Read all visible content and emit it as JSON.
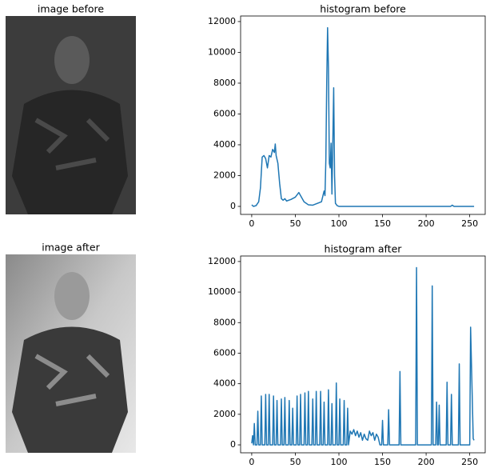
{
  "chart_data": [
    {
      "type": "image",
      "title": "image before"
    },
    {
      "type": "line",
      "title": "histogram before",
      "x": [
        0,
        2,
        5,
        8,
        10,
        12,
        14,
        16,
        18,
        20,
        22,
        24,
        26,
        27,
        28,
        30,
        32,
        34,
        36,
        38,
        40,
        45,
        50,
        54,
        56,
        60,
        65,
        70,
        80,
        83,
        84,
        85,
        86,
        87,
        88,
        89,
        90,
        91,
        92,
        93,
        94,
        95,
        96,
        98,
        100,
        150,
        200,
        228,
        230,
        232,
        255
      ],
      "series": [
        {
          "name": "histogram before",
          "color": "#1f77b4",
          "values": [
            100,
            0,
            50,
            300,
            1200,
            3200,
            3300,
            3100,
            2500,
            3300,
            3200,
            3700,
            3500,
            4050,
            3300,
            2800,
            1500,
            500,
            400,
            500,
            350,
            450,
            600,
            900,
            700,
            300,
            100,
            80,
            300,
            1000,
            700,
            3000,
            8000,
            11600,
            9000,
            2800,
            2500,
            4100,
            800,
            4200,
            7700,
            2000,
            200,
            50,
            0,
            0,
            0,
            0,
            80,
            0,
            0
          ]
        }
      ],
      "xlim": [
        -12.75,
        267.75
      ],
      "xticks": [
        0,
        50,
        100,
        150,
        200,
        250
      ],
      "ylim": [
        -520,
        12360
      ],
      "yticks": [
        0,
        2000,
        4000,
        6000,
        8000,
        10000,
        12000
      ]
    },
    {
      "type": "image",
      "title": "image after"
    },
    {
      "type": "line",
      "title": "histogram after",
      "x": [
        0,
        1,
        2,
        3,
        4,
        6,
        7,
        8,
        10,
        11,
        12,
        15,
        16,
        17,
        19,
        20,
        21,
        24,
        25,
        26,
        28,
        29,
        30,
        33,
        34,
        35,
        37,
        38,
        39,
        42,
        43,
        44,
        46,
        47,
        48,
        51,
        52,
        53,
        55,
        56,
        57,
        60,
        61,
        62,
        64,
        65,
        66,
        69,
        70,
        71,
        73,
        74,
        75,
        78,
        79,
        80,
        82,
        83,
        84,
        87,
        88,
        89,
        91,
        92,
        93,
        96,
        97,
        98,
        100,
        101,
        102,
        105,
        106,
        107,
        109,
        110,
        111,
        113,
        115,
        117,
        119,
        121,
        123,
        125,
        127,
        129,
        131,
        133,
        135,
        137,
        139,
        141,
        143,
        145,
        147,
        149,
        150,
        151,
        156,
        157,
        158,
        169,
        170,
        171,
        188,
        189,
        190,
        206,
        207,
        208,
        211,
        212,
        213,
        214,
        215,
        216,
        223,
        224,
        225,
        228,
        229,
        230,
        237,
        238,
        239,
        250,
        251,
        254,
        255
      ],
      "series": [
        {
          "name": "histogram after",
          "color": "#1f77b4",
          "values": [
            100,
            600,
            0,
            1400,
            0,
            0,
            2200,
            0,
            0,
            3200,
            0,
            0,
            3300,
            0,
            0,
            3300,
            0,
            0,
            3200,
            0,
            0,
            2900,
            0,
            0,
            3000,
            0,
            0,
            3100,
            0,
            0,
            2900,
            0,
            0,
            2400,
            0,
            0,
            3200,
            0,
            0,
            3300,
            0,
            0,
            3400,
            0,
            0,
            3500,
            0,
            0,
            3000,
            0,
            0,
            3500,
            0,
            0,
            3500,
            0,
            0,
            2800,
            0,
            0,
            3600,
            0,
            0,
            2700,
            0,
            0,
            4050,
            0,
            0,
            3000,
            0,
            0,
            2900,
            0,
            0,
            2400,
            0,
            900,
            700,
            1000,
            600,
            900,
            500,
            800,
            300,
            700,
            400,
            300,
            900,
            600,
            800,
            300,
            700,
            500,
            0,
            0,
            1600,
            0,
            0,
            2300,
            0,
            0,
            4800,
            0,
            0,
            11600,
            0,
            0,
            10400,
            0,
            0,
            2800,
            0,
            0,
            2600,
            0,
            0,
            4100,
            0,
            0,
            3300,
            0,
            0,
            5300,
            0,
            0,
            7700,
            400,
            300
          ]
        }
      ],
      "xlim": [
        -12.75,
        267.75
      ],
      "xticks": [
        0,
        50,
        100,
        150,
        200,
        250
      ],
      "ylim": [
        -520,
        12360
      ],
      "yticks": [
        0,
        2000,
        4000,
        6000,
        8000,
        10000,
        12000
      ]
    }
  ]
}
